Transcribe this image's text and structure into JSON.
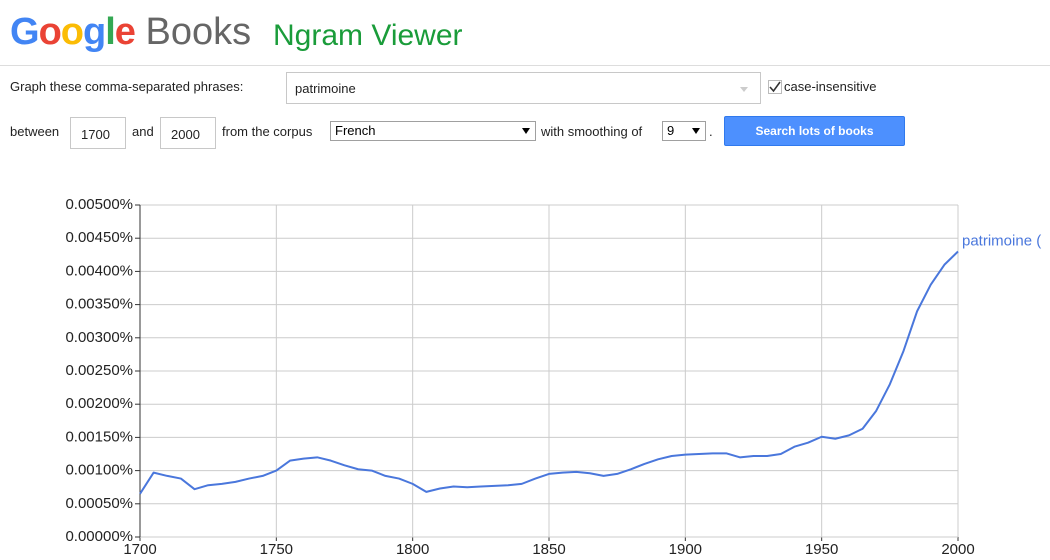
{
  "header": {
    "logo": "Google",
    "product": "Books",
    "title": "Ngram Viewer"
  },
  "form": {
    "phrases_label": "Graph these comma-separated phrases:",
    "phrases_value": "patrimoine",
    "case_label": "case-insensitive",
    "between_label": "between",
    "start_year": "1700",
    "and_label": "and",
    "end_year": "2000",
    "corpus_label": "from the corpus",
    "corpus_value": "French",
    "smoothing_label": "with smoothing of",
    "smoothing_value": "9",
    "period": ".",
    "button": "Search lots of books"
  },
  "chart_data": {
    "type": "line",
    "x": [
      1700,
      1705,
      1710,
      1715,
      1720,
      1725,
      1730,
      1735,
      1740,
      1745,
      1750,
      1755,
      1760,
      1765,
      1770,
      1775,
      1780,
      1785,
      1790,
      1795,
      1800,
      1805,
      1810,
      1815,
      1820,
      1825,
      1830,
      1835,
      1840,
      1845,
      1850,
      1855,
      1860,
      1865,
      1870,
      1875,
      1880,
      1885,
      1890,
      1895,
      1900,
      1905,
      1910,
      1915,
      1920,
      1925,
      1930,
      1935,
      1940,
      1945,
      1950,
      1955,
      1960,
      1965,
      1970,
      1975,
      1980,
      1985,
      1990,
      1995,
      2000
    ],
    "series": [
      {
        "name": "patrimoine (",
        "color": "#4a77dc",
        "values": [
          0.00065,
          0.00097,
          0.00092,
          0.00088,
          0.00072,
          0.00078,
          0.0008,
          0.00083,
          0.00088,
          0.00092,
          0.001,
          0.00115,
          0.00118,
          0.0012,
          0.00115,
          0.00108,
          0.00102,
          0.001,
          0.00092,
          0.00088,
          0.0008,
          0.00068,
          0.00073,
          0.00076,
          0.00075,
          0.00076,
          0.00077,
          0.00078,
          0.0008,
          0.00088,
          0.00095,
          0.00097,
          0.00098,
          0.00096,
          0.00092,
          0.00095,
          0.00102,
          0.0011,
          0.00117,
          0.00122,
          0.00124,
          0.00125,
          0.00126,
          0.00126,
          0.0012,
          0.00122,
          0.00122,
          0.00125,
          0.00136,
          0.00142,
          0.00151,
          0.00148,
          0.00153,
          0.00163,
          0.0019,
          0.0023,
          0.0028,
          0.0034,
          0.0038,
          0.0041,
          0.0043
        ]
      }
    ],
    "xlim": [
      1700,
      2000
    ],
    "xticks": [
      1700,
      1750,
      1800,
      1850,
      1900,
      1950,
      2000
    ],
    "ylim": [
      0,
      0.005
    ],
    "yticks": [
      {
        "value": 0,
        "label": "0.00000%"
      },
      {
        "value": 0.0005,
        "label": "0.00050%"
      },
      {
        "value": 0.001,
        "label": "0.00100%"
      },
      {
        "value": 0.0015,
        "label": "0.00150%"
      },
      {
        "value": 0.002,
        "label": "0.00200%"
      },
      {
        "value": 0.0025,
        "label": "0.00250%"
      },
      {
        "value": 0.003,
        "label": "0.00300%"
      },
      {
        "value": 0.0035,
        "label": "0.00350%"
      },
      {
        "value": 0.004,
        "label": "0.00400%"
      },
      {
        "value": 0.0045,
        "label": "0.00450%"
      },
      {
        "value": 0.005,
        "label": "0.00500%"
      }
    ],
    "grid": true
  }
}
